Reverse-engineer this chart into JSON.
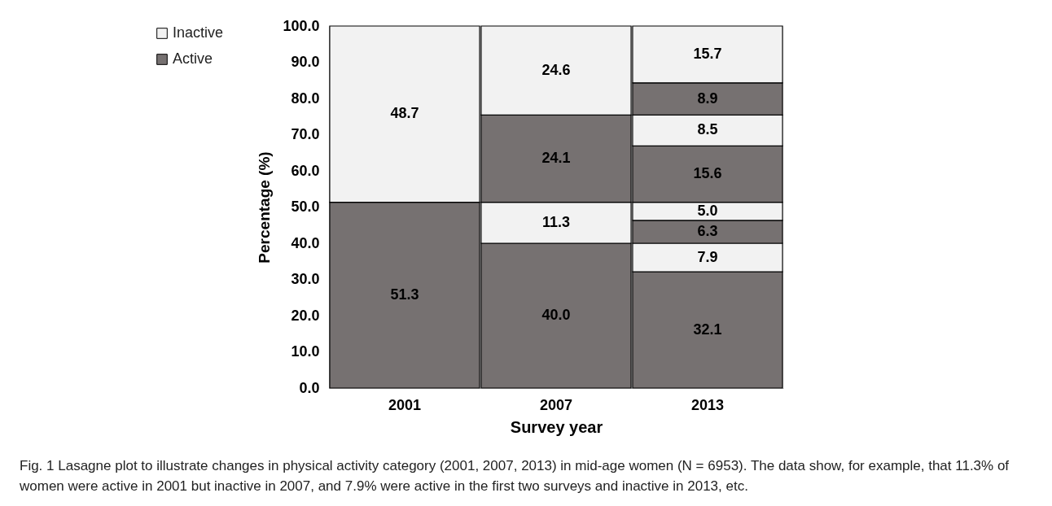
{
  "chart_data": {
    "type": "bar",
    "stacked": true,
    "categories": [
      "2001",
      "2007",
      "2013"
    ],
    "xlabel": "Survey year",
    "ylabel": "Percentage (%)",
    "ylim": [
      0,
      100
    ],
    "yticks": [
      {
        "value": 0,
        "label": "0.0"
      },
      {
        "value": 10,
        "label": "10.0"
      },
      {
        "value": 20,
        "label": "20.0"
      },
      {
        "value": 30,
        "label": "30.0"
      },
      {
        "value": 40,
        "label": "40.0"
      },
      {
        "value": 50,
        "label": "50.0"
      },
      {
        "value": 60,
        "label": "60.0"
      },
      {
        "value": 70,
        "label": "70.0"
      },
      {
        "value": 80,
        "label": "80.0"
      },
      {
        "value": 90,
        "label": "90.0"
      },
      {
        "value": 100,
        "label": "100.0"
      }
    ],
    "series": [
      {
        "name": "Active",
        "color": "#767171",
        "values": [
          51.3,
          40.0,
          32.1
        ],
        "value_labels": [
          "51.3",
          "40.0",
          "32.1"
        ]
      },
      {
        "name": "Inactive",
        "color": "#f2f2f2",
        "values": [
          48.7,
          11.3,
          7.9
        ],
        "value_labels": [
          "48.7",
          "11.3",
          "7.9"
        ]
      },
      {
        "color": "#767171",
        "values": [
          null,
          24.1,
          6.3
        ],
        "value_labels": [
          null,
          "24.1",
          "6.3"
        ]
      },
      {
        "color": "#f2f2f2",
        "values": [
          null,
          24.6,
          5.0
        ],
        "value_labels": [
          null,
          "24.6",
          "5.0"
        ]
      },
      {
        "color": "#767171",
        "values": [
          null,
          null,
          15.6
        ],
        "value_labels": [
          null,
          null,
          "15.6"
        ]
      },
      {
        "color": "#f2f2f2",
        "values": [
          null,
          null,
          8.5
        ],
        "value_labels": [
          null,
          null,
          "8.5"
        ]
      },
      {
        "color": "#767171",
        "values": [
          null,
          null,
          8.9
        ],
        "value_labels": [
          null,
          null,
          "8.9"
        ]
      },
      {
        "color": "#f2f2f2",
        "values": [
          null,
          null,
          15.7
        ],
        "value_labels": [
          null,
          null,
          "15.7"
        ]
      }
    ],
    "legend": "left",
    "grid": false,
    "annotations": [
      "Fig. 1 Lasagne plot to illustrate changes in physical activity category (2001, 2007, 2013) in mid-age women (N = 6953). The data show, for example, that 11.3% of women were active in 2001 but inactive in 2007, and 7.9% were active in the first two surveys and inactive in 2013, etc."
    ]
  }
}
